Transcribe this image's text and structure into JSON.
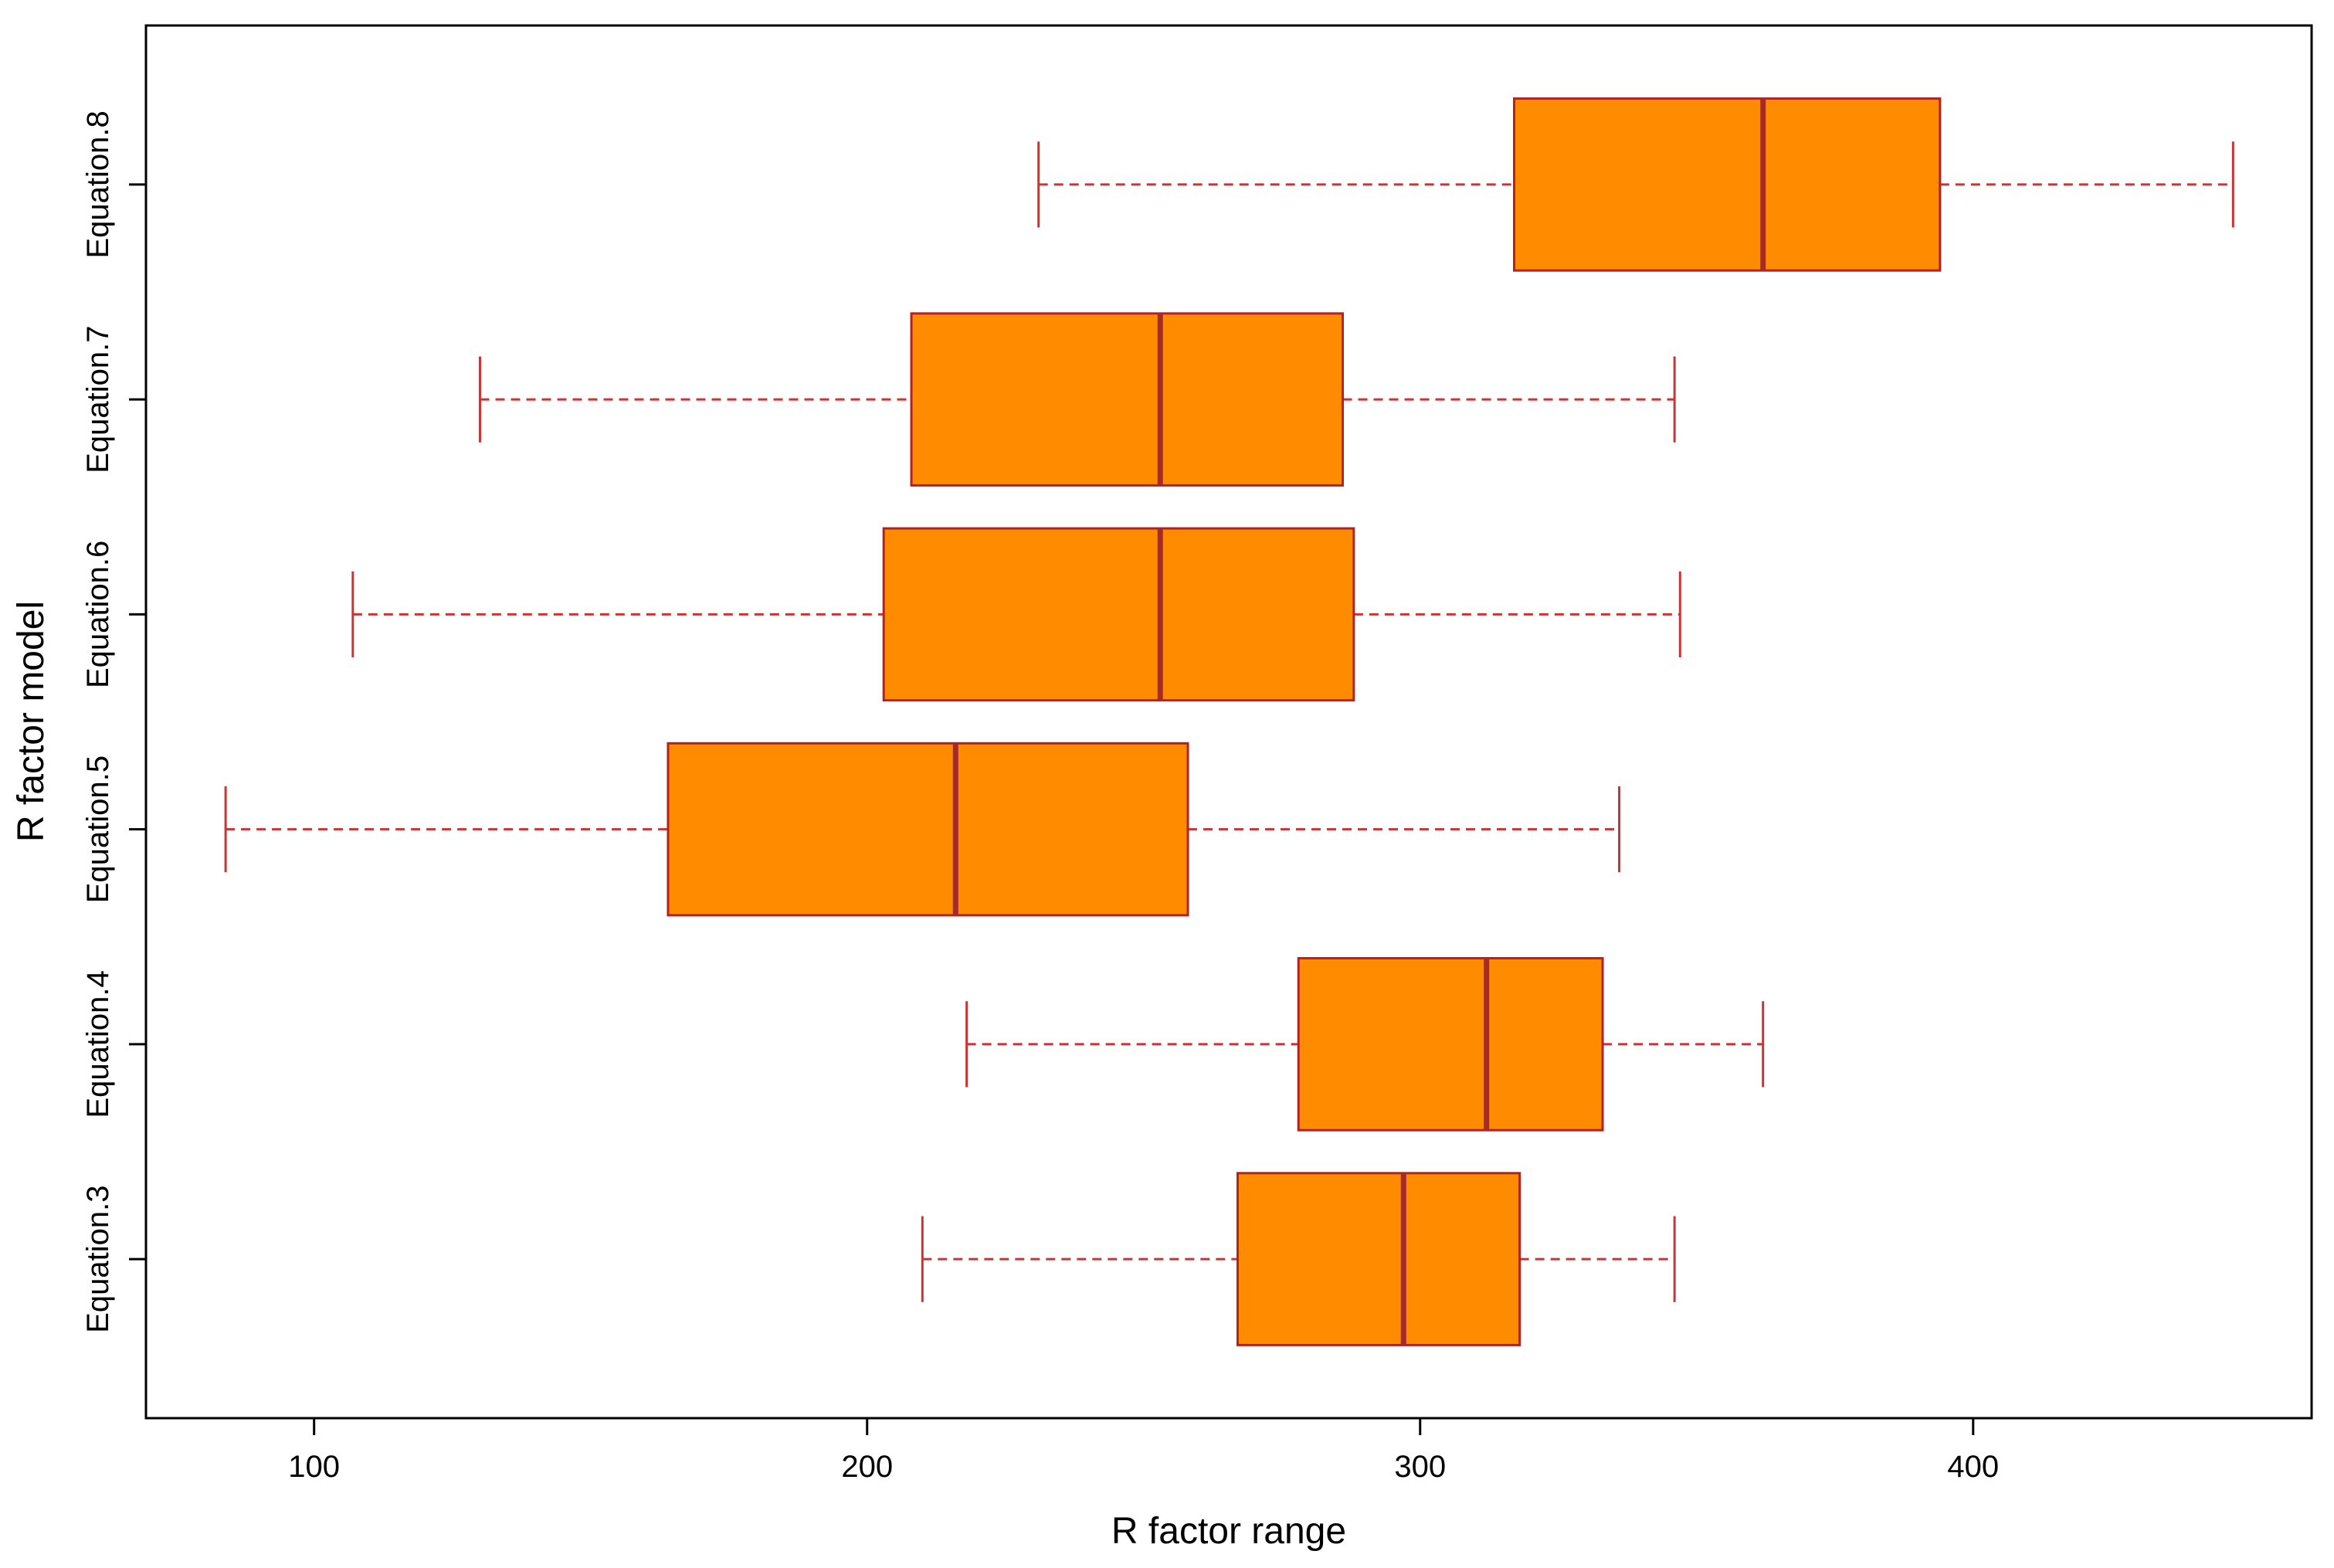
{
  "chart_data": {
    "type": "boxplot",
    "orientation": "horizontal",
    "title": "",
    "xlabel": "R factor range",
    "ylabel": "R factor model",
    "xlim": [
      69.6,
      461.2
    ],
    "xticks": [
      100,
      200,
      300,
      400
    ],
    "grid": false,
    "legend": "none",
    "colors": {
      "box_fill": "#FF8C00",
      "box_border": "#B22222",
      "median": "#A52A2A",
      "whisker": "#CD3333"
    },
    "categories": [
      "Equation.3",
      "Equation.4",
      "Equation.5",
      "Equation.6",
      "Equation.7",
      "Equation.8"
    ],
    "boxes": [
      {
        "name": "Equation.3",
        "min": 210,
        "q1": 267,
        "median": 297,
        "q3": 318,
        "max": 346
      },
      {
        "name": "Equation.4",
        "min": 218,
        "q1": 278,
        "median": 312,
        "q3": 333,
        "max": 362
      },
      {
        "name": "Equation.5",
        "min": 84,
        "q1": 164,
        "median": 216,
        "q3": 258,
        "max": 336
      },
      {
        "name": "Equation.6",
        "min": 107,
        "q1": 203,
        "median": 253,
        "q3": 288,
        "max": 347
      },
      {
        "name": "Equation.7",
        "min": 130,
        "q1": 208,
        "median": 253,
        "q3": 286,
        "max": 346
      },
      {
        "name": "Equation.8",
        "min": 231,
        "q1": 317,
        "median": 362,
        "q3": 394,
        "max": 447
      }
    ]
  }
}
